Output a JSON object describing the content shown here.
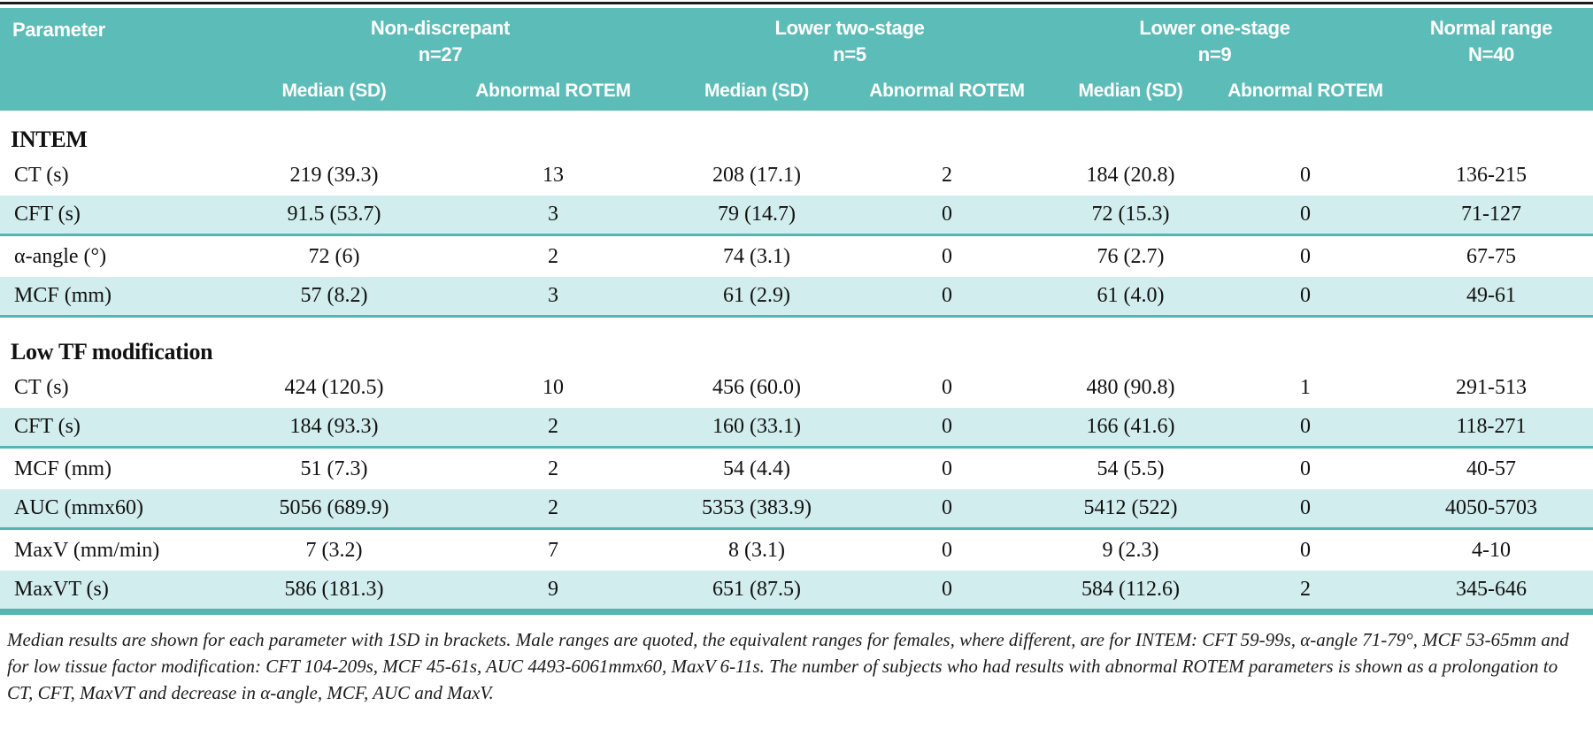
{
  "table": {
    "header": {
      "parameter_label": "Parameter",
      "groups": [
        {
          "name": "Non-discrepant",
          "n": "n=27"
        },
        {
          "name": "Lower two-stage",
          "n": "n=5"
        },
        {
          "name": "Lower one-stage",
          "n": "n=9"
        }
      ],
      "normal_range": {
        "name": "Normal range",
        "n": "N=40"
      },
      "subheaders": {
        "median": "Median (SD)",
        "abnormal": "Abnormal ROTEM"
      }
    },
    "sections": [
      {
        "title": "INTEM",
        "rows": [
          {
            "parameter": "CT (s)",
            "striped": false,
            "values": [
              "219 (39.3)",
              "13",
              "208 (17.1)",
              "2",
              "184 (20.8)",
              "0",
              "136-215"
            ]
          },
          {
            "parameter": "CFT (s)",
            "striped": true,
            "values": [
              "91.5 (53.7)",
              "3",
              "79 (14.7)",
              "0",
              "72 (15.3)",
              "0",
              "71-127"
            ]
          },
          {
            "parameter": "α-angle (°)",
            "striped": false,
            "values": [
              "72 (6)",
              "2",
              "74 (3.1)",
              "0",
              "76 (2.7)",
              "0",
              "67-75"
            ]
          },
          {
            "parameter": "MCF (mm)",
            "striped": true,
            "values": [
              "57 (8.2)",
              "3",
              "61 (2.9)",
              "0",
              "61 (4.0)",
              "0",
              "49-61"
            ]
          }
        ]
      },
      {
        "title": "Low TF modification",
        "rows": [
          {
            "parameter": "CT (s)",
            "striped": false,
            "values": [
              "424 (120.5)",
              "10",
              "456 (60.0)",
              "0",
              "480 (90.8)",
              "1",
              "291-513"
            ]
          },
          {
            "parameter": "CFT (s)",
            "striped": true,
            "values": [
              "184 (93.3)",
              "2",
              "160 (33.1)",
              "0",
              "166 (41.6)",
              "0",
              "118-271"
            ]
          },
          {
            "parameter": "MCF (mm)",
            "striped": false,
            "values": [
              "51 (7.3)",
              "2",
              "54 (4.4)",
              "0",
              "54 (5.5)",
              "0",
              "40-57"
            ]
          },
          {
            "parameter": "AUC (mmx60)",
            "striped": true,
            "values": [
              "5056 (689.9)",
              "2",
              "5353 (383.9)",
              "0",
              "5412 (522)",
              "0",
              "4050-5703"
            ]
          },
          {
            "parameter": "MaxV (mm/min)",
            "striped": false,
            "values": [
              "7 (3.2)",
              "7",
              "8 (3.1)",
              "0",
              "9 (2.3)",
              "0",
              "4-10"
            ]
          },
          {
            "parameter": "MaxVT (s)",
            "striped": true,
            "values": [
              "586 (181.3)",
              "9",
              "651 (87.5)",
              "0",
              "584 (112.6)",
              "2",
              "345-646"
            ]
          }
        ]
      }
    ],
    "footnote": "Median results are shown for each parameter with 1SD in brackets. Male ranges are quoted, the equivalent ranges for females, where different, are for INTEM: CFT 59-99s, α-angle 71-79°, MCF 53-65mm and for low tissue factor modification: CFT 104-209s, MCF 45-61s, AUC 4493-6061mmx60, MaxV 6-11s. The number of subjects who had results with abnormal ROTEM parameters is shown as a prolongation to CT, CFT, MaxVT and decrease in α-angle, MCF, AUC and MaxV.",
    "colors": {
      "header_bg": "#5cbcb8",
      "stripe_bg": "#d2eded",
      "rule": "#53b6b2",
      "text": "#111111"
    }
  }
}
